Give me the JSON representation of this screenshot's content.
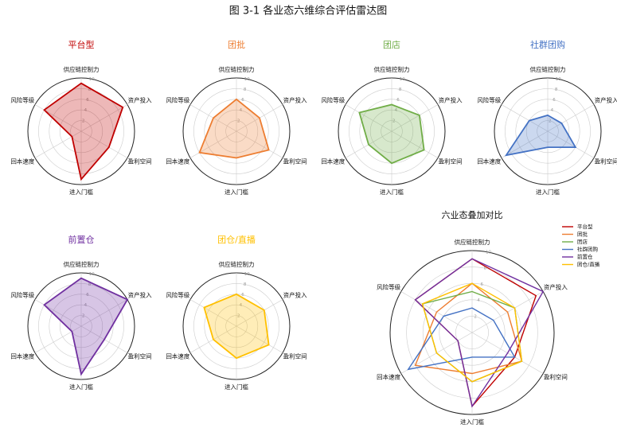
{
  "title": "图 3-1  各业态六维综合评估雷达图",
  "chart_data": [
    {
      "type": "radar",
      "title": "平台型",
      "color": "#c00000",
      "categories": [
        "供应链控制力",
        "资产投入",
        "盈利空间",
        "进入门槛",
        "回本速度",
        "风险等级"
      ],
      "values": [
        9,
        9,
        6,
        9,
        2,
        8
      ],
      "rlim": [
        0,
        10
      ],
      "rticks": [
        2,
        4,
        6,
        8,
        10
      ]
    },
    {
      "type": "radar",
      "title": "团批",
      "color": "#ed7d31",
      "categories": [
        "供应链控制力",
        "资产投入",
        "盈利空间",
        "进入门槛",
        "回本速度",
        "风险等级"
      ],
      "values": [
        6,
        5,
        7,
        5,
        8,
        5
      ],
      "rlim": [
        0,
        10
      ],
      "rticks": [
        2,
        4,
        6,
        8,
        10
      ]
    },
    {
      "type": "radar",
      "title": "团店",
      "color": "#70ad47",
      "categories": [
        "供应链控制力",
        "资产投入",
        "盈利空间",
        "进入门槛",
        "回本速度",
        "风险等级"
      ],
      "values": [
        5,
        6,
        7,
        6,
        5,
        7
      ],
      "rlim": [
        0,
        10
      ],
      "rticks": [
        2,
        4,
        6,
        8,
        10
      ]
    },
    {
      "type": "radar",
      "title": "社群团购",
      "color": "#4472c4",
      "categories": [
        "供应链控制力",
        "资产投入",
        "盈利空间",
        "进入门槛",
        "回本速度",
        "风险等级"
      ],
      "values": [
        3,
        3,
        6,
        3,
        9,
        4
      ],
      "rlim": [
        0,
        10
      ],
      "rticks": [
        2,
        4,
        6,
        8,
        10
      ]
    },
    {
      "type": "radar",
      "title": "前置仓",
      "color": "#7030a0",
      "categories": [
        "供应链控制力",
        "资产投入",
        "盈利空间",
        "进入门槛",
        "回本速度",
        "风险等级"
      ],
      "values": [
        9,
        10,
        5,
        9,
        2,
        8
      ],
      "rlim": [
        0,
        10
      ],
      "rticks": [
        2,
        4,
        6,
        8,
        10
      ]
    },
    {
      "type": "radar",
      "title": "团仓/直播",
      "color": "#ffc000",
      "categories": [
        "供应链控制力",
        "资产投入",
        "盈利空间",
        "进入门槛",
        "回本速度",
        "风险等级"
      ],
      "values": [
        6,
        6,
        7,
        6,
        5,
        7
      ],
      "rlim": [
        0,
        10
      ],
      "rticks": [
        2,
        4,
        6,
        8,
        10
      ]
    },
    {
      "type": "radar",
      "title": "六业态叠加对比",
      "categories": [
        "供应链控制力",
        "资产投入",
        "盈利空间",
        "进入门槛",
        "回本速度",
        "风险等级"
      ],
      "rlim": [
        0,
        10
      ],
      "rticks": [
        2,
        4,
        6,
        8,
        10
      ],
      "legend": "upper right",
      "series": [
        {
          "name": "平台型",
          "color": "#c00000",
          "values": [
            9,
            9,
            6,
            9,
            2,
            8
          ]
        },
        {
          "name": "团批",
          "color": "#ed7d31",
          "values": [
            6,
            5,
            7,
            5,
            8,
            5
          ]
        },
        {
          "name": "团店",
          "color": "#70ad47",
          "values": [
            5,
            6,
            7,
            6,
            5,
            7
          ]
        },
        {
          "name": "社群团购",
          "color": "#4472c4",
          "values": [
            3,
            3,
            6,
            3,
            9,
            4
          ]
        },
        {
          "name": "前置仓",
          "color": "#7030a0",
          "values": [
            9,
            10,
            5,
            9,
            2,
            8
          ]
        },
        {
          "name": "团仓/直播",
          "color": "#ffc000",
          "values": [
            6,
            6,
            7,
            6,
            5,
            7
          ]
        }
      ]
    }
  ]
}
